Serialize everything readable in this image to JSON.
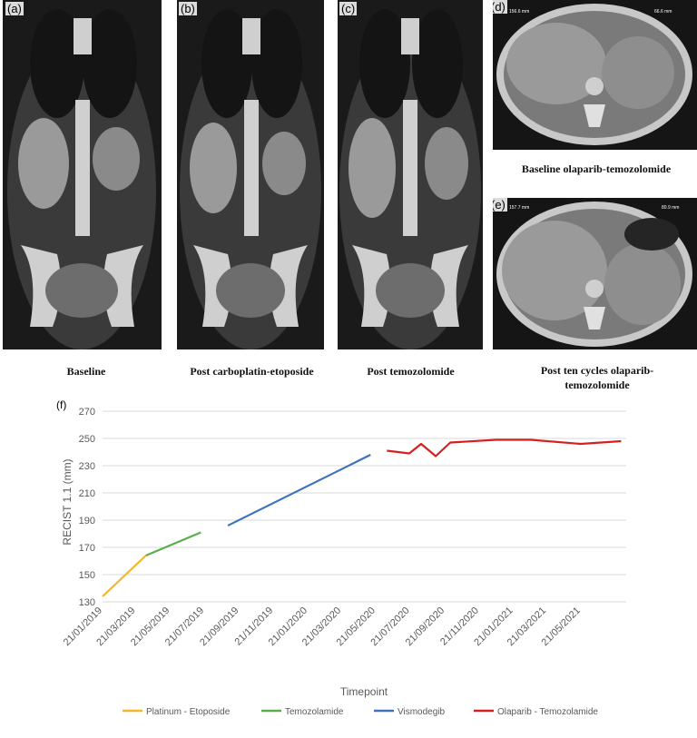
{
  "panels": {
    "a": {
      "label": "(a)",
      "caption": "Baseline"
    },
    "b": {
      "label": "(b)",
      "caption": "Post carboplatin-etoposide"
    },
    "c": {
      "label": "(c)",
      "caption": "Post temozolomide"
    },
    "d": {
      "label": "(d)",
      "caption": "Baseline olaparib-temozolomide",
      "measure_left": "156.6 mm",
      "measure_right": "66.6 mm"
    },
    "e": {
      "label": "(e)",
      "caption": "Post ten cycles olaparib-temozolomide",
      "measure_left": "157.7 mm",
      "measure_right": "80.9 mm"
    },
    "f": {
      "label": "(f)"
    }
  },
  "chart_data": {
    "type": "line",
    "xlabel": "Timepoint",
    "ylabel": "RECIST 1.1 (mm)",
    "ylim": [
      130,
      270
    ],
    "yticks": [
      130,
      150,
      170,
      190,
      210,
      230,
      250,
      270
    ],
    "xticks": [
      "21/01/2019",
      "21/03/2019",
      "21/05/2019",
      "21/07/2019",
      "21/09/2019",
      "21/11/2019",
      "21/01/2020",
      "21/03/2020",
      "21/05/2020",
      "21/07/2020",
      "21/09/2020",
      "21/11/2020",
      "21/01/2021",
      "21/03/2021",
      "21/05/2021"
    ],
    "grid": "horizontal",
    "legend_position": "bottom",
    "series": [
      {
        "name": "Platinum - Etoposide",
        "color": "#F2B62A",
        "points": [
          [
            "21/01/2019",
            134
          ],
          [
            "08/04/2019",
            164
          ]
        ]
      },
      {
        "name": "Temozolamide",
        "color": "#5AAE4C",
        "points": [
          [
            "08/04/2019",
            164
          ],
          [
            "15/07/2019",
            181
          ]
        ]
      },
      {
        "name": "Vismodegib",
        "color": "#3E72C0",
        "points": [
          [
            "01/09/2019",
            186
          ],
          [
            "12/05/2020",
            238
          ]
        ]
      },
      {
        "name": "Olaparib - Temozolamide",
        "color": "#D62020",
        "points": [
          [
            "10/06/2020",
            241
          ],
          [
            "20/07/2020",
            239
          ],
          [
            "10/08/2020",
            246
          ],
          [
            "05/09/2020",
            237
          ],
          [
            "01/10/2020",
            247
          ],
          [
            "21/12/2020",
            249
          ],
          [
            "21/02/2021",
            249
          ],
          [
            "21/05/2021",
            246
          ],
          [
            "01/08/2021",
            248
          ]
        ]
      }
    ]
  }
}
